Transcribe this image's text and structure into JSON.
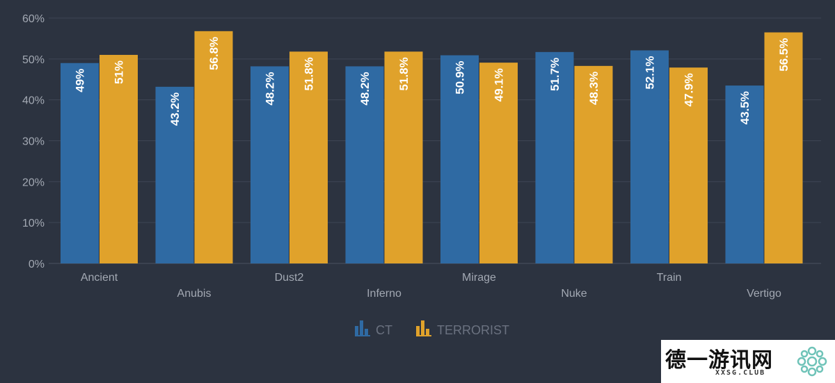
{
  "chart_data": {
    "type": "bar",
    "categories": [
      "Ancient",
      "Anubis",
      "Dust2",
      "Inferno",
      "Mirage",
      "Nuke",
      "Train",
      "Vertigo"
    ],
    "series": [
      {
        "name": "CT",
        "color": "#2f6aa3",
        "values": [
          49,
          43.2,
          48.2,
          48.2,
          50.9,
          51.7,
          52.1,
          43.5
        ],
        "labels": [
          "49%",
          "43.2%",
          "48.2%",
          "48.2%",
          "50.9%",
          "51.7%",
          "52.1%",
          "43.5%"
        ]
      },
      {
        "name": "TERRORIST",
        "color": "#e0a22b",
        "values": [
          51,
          56.8,
          51.8,
          51.8,
          49.1,
          48.3,
          47.9,
          56.5
        ],
        "labels": [
          "51%",
          "56.8%",
          "51.8%",
          "51.8%",
          "49.1%",
          "48.3%",
          "47.9%",
          "56.5%"
        ]
      }
    ],
    "ylim": [
      0,
      60
    ],
    "yticks": [
      "0%",
      "10%",
      "20%",
      "30%",
      "40%",
      "50%",
      "60%"
    ],
    "legend": "bottom-center",
    "grid": true
  },
  "watermark": {
    "text": "德一游讯网",
    "subtext": "XXSG.CLUB",
    "icon": "flower-logo-icon"
  }
}
